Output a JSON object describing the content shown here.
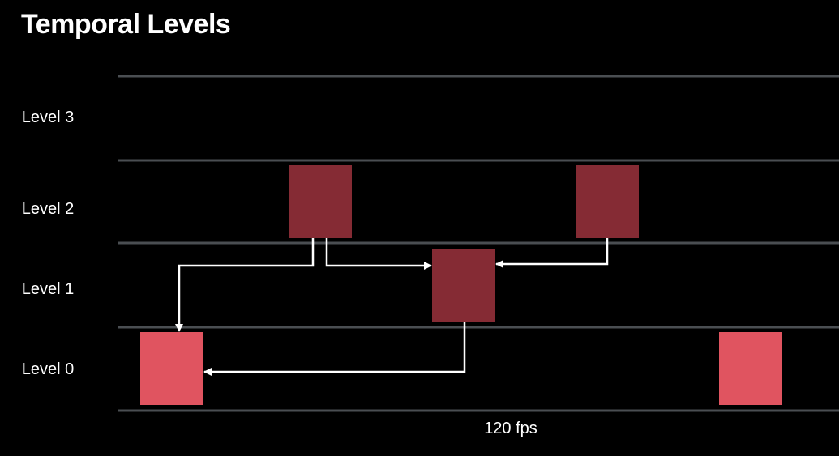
{
  "title": "Temporal Levels",
  "levels": [
    {
      "label": "Level 3"
    },
    {
      "label": "Level 2"
    },
    {
      "label": "Level 1"
    },
    {
      "label": "Level 0"
    }
  ],
  "rate_label": "120 fps",
  "colors": {
    "background": "#000000",
    "gridline": "#4a4e52",
    "level0_frame": "#e05460",
    "higher_level_frame": "#852b34",
    "arrow": "#ffffff"
  },
  "frames": [
    {
      "level": 0
    },
    {
      "level": 2
    },
    {
      "level": 1
    },
    {
      "level": 2
    },
    {
      "level": 0
    }
  ],
  "references": [
    {
      "from": 1,
      "to": 0
    },
    {
      "from": 1,
      "to": 2
    },
    {
      "from": 3,
      "to": 2
    },
    {
      "from": 2,
      "to": 0
    }
  ]
}
